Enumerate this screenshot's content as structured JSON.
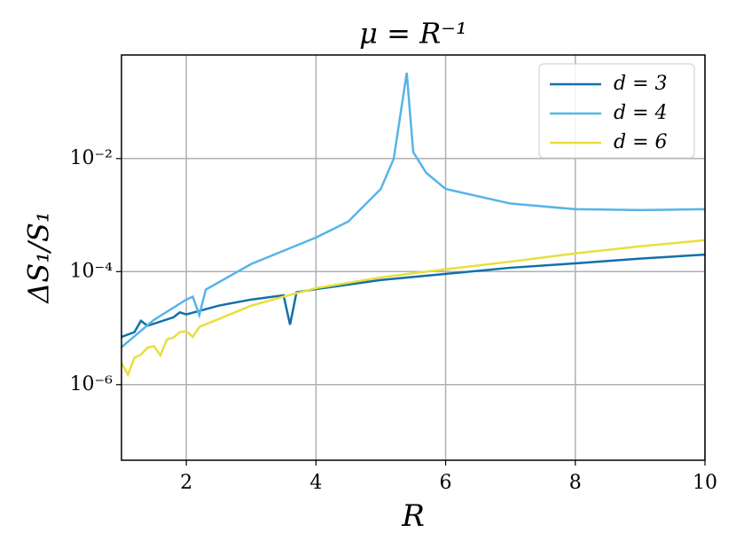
{
  "chart_data": {
    "type": "line",
    "title": "μ = R⁻¹",
    "xlabel": "R",
    "ylabel": "ΔS₁/S₁",
    "xlim": [
      1,
      10
    ],
    "xticks": [
      2,
      4,
      6,
      8,
      10
    ],
    "ylim": [
      4.6e-08,
      0.68
    ],
    "log_y": true,
    "yticks": [
      {
        "value": 0.01,
        "label": "10⁻²"
      },
      {
        "value": 0.0001,
        "label": "10⁻⁴"
      },
      {
        "value": 1e-06,
        "label": "10⁻⁶"
      }
    ],
    "grid": true,
    "legend": "upper right",
    "series": [
      {
        "name": "d = 3",
        "color": "#1170aa",
        "x": [
          1,
          1.2,
          1.3,
          1.4,
          1.8,
          1.9,
          2.0,
          2.5,
          3,
          3.5,
          3.6,
          3.7,
          4,
          5,
          6,
          7,
          8,
          9,
          10
        ],
        "values": [
          7e-06,
          8.5e-06,
          1.35e-05,
          1.1e-05,
          1.55e-05,
          1.9e-05,
          1.75e-05,
          2.5e-05,
          3.2e-05,
          3.8e-05,
          1.15e-05,
          4.3e-05,
          4.9e-05,
          7.1e-05,
          9.1e-05,
          0.000117,
          0.00014,
          0.00017,
          0.0002
        ]
      },
      {
        "name": "d = 4",
        "color": "#56b4e9",
        "x": [
          1,
          1.5,
          2,
          2.1,
          2.2,
          2.3,
          3,
          4,
          4.5,
          5,
          5.2,
          5.4,
          5.5,
          5.7,
          6,
          7,
          8,
          9,
          10
        ],
        "values": [
          4.6e-06,
          1.4e-05,
          3.2e-05,
          3.6e-05,
          1.7e-05,
          4.8e-05,
          0.000136,
          0.0004,
          0.00077,
          0.0029,
          0.01,
          0.33,
          0.013,
          0.0056,
          0.0029,
          0.0016,
          0.00127,
          0.00123,
          0.00127
        ]
      },
      {
        "name": "d = 6",
        "color": "#e8df3c",
        "x": [
          1,
          1.1,
          1.2,
          1.3,
          1.4,
          1.5,
          1.6,
          1.7,
          1.8,
          1.9,
          2.0,
          2.1,
          2.2,
          2.5,
          3,
          3.5,
          4,
          5,
          6,
          7,
          8,
          9,
          10
        ],
        "values": [
          2.4e-06,
          1.5e-06,
          3e-06,
          3.4e-06,
          4.5e-06,
          4.8e-06,
          3.3e-06,
          6.3e-06,
          6.8e-06,
          8.5e-06,
          8.8e-06,
          7e-06,
          1.05e-05,
          1.45e-05,
          2.5e-05,
          3.6e-05,
          5.1e-05,
          7.9e-05,
          0.00011,
          0.00015,
          0.00021,
          0.00028,
          0.00036
        ]
      }
    ]
  }
}
